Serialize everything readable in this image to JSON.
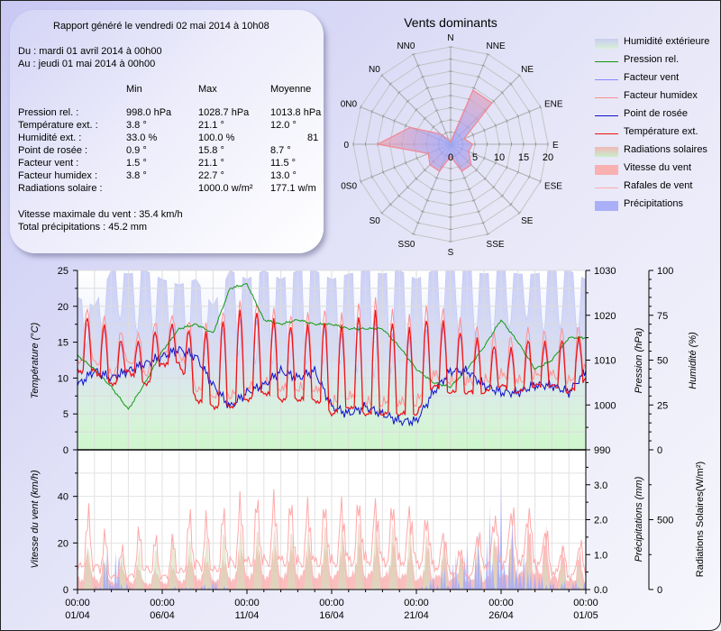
{
  "report": {
    "title": "Rapport généré le vendredi 02 mai 2014 à 10h08",
    "from": "Du : mardi 01 avril 2014 à 00h00",
    "to": "Au : jeudi 01 mai 2014 à 00h00",
    "columns": [
      "Min",
      "Max",
      "Moyenne"
    ],
    "rows": [
      {
        "label": "Pression rel. :",
        "min": "998.0 hPa",
        "max": "1028.7 hPa",
        "avg": "1013.8 hPa"
      },
      {
        "label": "Température ext. :",
        "min": "3.8 °",
        "max": "21.1 °",
        "avg": "12.0 °"
      },
      {
        "label": "Humidité ext. :",
        "min": "33.0 %",
        "max": "100.0 %",
        "avg": "81"
      },
      {
        "label": "Point de rosée :",
        "min": "0.9 °",
        "max": "15.8 °",
        "avg": "8.7 °"
      },
      {
        "label": "Facteur vent :",
        "min": "1.5 °",
        "max": "21.1 °",
        "avg": "11.5 °"
      },
      {
        "label": "Facteur humidex :",
        "min": "3.8 °",
        "max": "22.7 °",
        "avg": "13.0 °"
      },
      {
        "label": "Radiations solaire :",
        "min": "",
        "max": "1000.0 w/m²",
        "avg": "177.1 w/m"
      }
    ],
    "max_wind": "Vitesse maximale du vent : 35.4 km/h",
    "total_rain": "Total précipitations : 45.2 mm"
  },
  "legend": [
    {
      "label": "Humidité extérieure",
      "kind": "area",
      "color": "#c8ccf0",
      "color2": "#d8f0d8"
    },
    {
      "label": "Pression rel.",
      "kind": "line",
      "color": "#119911"
    },
    {
      "label": "Facteur vent",
      "kind": "line",
      "color": "#8888ff"
    },
    {
      "label": "Facteur humidex",
      "kind": "line",
      "color": "#ff9090"
    },
    {
      "label": "Point de rosée",
      "kind": "line",
      "color": "#1010cc"
    },
    {
      "label": "Température ext.",
      "kind": "line",
      "color": "#ee1111"
    },
    {
      "label": "Radiations solaires",
      "kind": "area",
      "color": "#f0b8b8",
      "color2": "#c8eec8"
    },
    {
      "label": "Vitesse du vent",
      "kind": "area",
      "color": "#f8b0b0",
      "color2": "#f8b0b0"
    },
    {
      "label": "Rafales de vent",
      "kind": "line",
      "color": "#ffaaaa"
    },
    {
      "label": "Précipitations",
      "kind": "area",
      "color": "#aab0f8",
      "color2": "#aab0f8"
    }
  ],
  "chart_data": [
    {
      "type": "radar",
      "title": "Vents dominants",
      "directions": [
        "N",
        "NNE",
        "NE",
        "ENE",
        "E",
        "ESE",
        "SE",
        "SSE",
        "S",
        "SS0",
        "S0",
        "0S0",
        "0",
        "0N0",
        "N0",
        "NN0"
      ],
      "values": [
        0.5,
        12,
        12,
        3,
        4.5,
        4,
        6,
        6,
        2.5,
        6,
        6,
        5,
        15,
        9,
        3,
        1
      ],
      "rticks": [
        0,
        5,
        10,
        15,
        20
      ],
      "rlim": [
        0,
        20
      ]
    },
    {
      "type": "line",
      "title": "",
      "x_ticks": [
        {
          "l1": "00:00",
          "l2": "01/04"
        },
        {
          "l1": "00:00",
          "l2": "06/04"
        },
        {
          "l1": "00:00",
          "l2": "11/04"
        },
        {
          "l1": "00:00",
          "l2": "16/04"
        },
        {
          "l1": "00:00",
          "l2": "21/04"
        },
        {
          "l1": "00:00",
          "l2": "26/04"
        },
        {
          "l1": "00:00",
          "l2": "01/05"
        }
      ],
      "x_range_days": [
        0,
        30
      ],
      "axes": {
        "temperature": {
          "label": "Température (°C)",
          "lim": [
            0,
            25
          ],
          "ticks": [
            0,
            5,
            10,
            15,
            20,
            25
          ]
        },
        "pressure": {
          "label": "Pression (hPa)",
          "lim": [
            990,
            1030
          ],
          "ticks": [
            990,
            1000,
            1010,
            1020,
            1030
          ]
        },
        "humidity": {
          "label": "Humidité (%)",
          "lim": [
            0,
            100
          ],
          "ticks": [
            0,
            25,
            50,
            75,
            100
          ]
        }
      },
      "day_samples": [
        0,
        1,
        2,
        3,
        4,
        5,
        6,
        7,
        8,
        9,
        10,
        11,
        12,
        13,
        14,
        15,
        16,
        17,
        18,
        19,
        20,
        21,
        22,
        23,
        24,
        25,
        26,
        27,
        28,
        29,
        30
      ],
      "series": [
        {
          "name": "Pression rel.",
          "axis": "pressure",
          "color": "#119911",
          "values": [
            1011,
            1008,
            1004,
            999,
            1005,
            1012,
            1017,
            1018,
            1016,
            1026,
            1027,
            1019,
            1018,
            1019,
            1018,
            1018,
            1017,
            1017,
            1017,
            1013,
            1008,
            1005,
            1004,
            1008,
            1013,
            1019,
            1014,
            1008,
            1010,
            1015,
            1015
          ]
        },
        {
          "name": "Température ext. (daily min/max)",
          "axis": "temperature",
          "color": "#ee1111",
          "tmin": [
            11,
            11,
            9,
            11,
            9,
            12,
            12,
            7,
            6,
            6,
            7,
            8,
            7,
            7,
            7,
            5,
            6,
            5,
            5,
            5,
            5,
            9,
            8,
            8,
            8,
            9,
            8,
            9,
            9,
            8,
            10
          ],
          "tmax": [
            19,
            18,
            17,
            14,
            16,
            17,
            18,
            16,
            17,
            19,
            20,
            19,
            18,
            17,
            18,
            18,
            17,
            20,
            19,
            17,
            17,
            19,
            17,
            16,
            15,
            14,
            14,
            16,
            14,
            16,
            15
          ]
        },
        {
          "name": "Point de rosée",
          "axis": "temperature",
          "color": "#1010cc",
          "values": [
            9,
            11,
            10,
            11,
            12,
            13,
            14,
            13,
            9,
            6,
            8,
            9,
            11,
            10,
            11,
            6,
            5,
            6,
            5,
            4,
            4,
            8,
            11,
            11,
            9,
            8,
            8,
            9,
            9,
            8,
            11
          ]
        },
        {
          "name": "Humidité extérieure (daily max/min)",
          "axis": "humidity",
          "hmax": [
            85,
            80,
            100,
            98,
            100,
            95,
            92,
            95,
            80,
            100,
            95,
            100,
            95,
            100,
            100,
            95,
            98,
            100,
            98,
            100,
            95,
            100,
            100,
            100,
            98,
            100,
            98,
            98,
            100,
            100,
            95
          ],
          "hmin": [
            60,
            55,
            75,
            70,
            60,
            65,
            55,
            50,
            55,
            60,
            45,
            50,
            45,
            50,
            45,
            50,
            45,
            40,
            40,
            45,
            50,
            55,
            70,
            60,
            65,
            60,
            75,
            70,
            60,
            75,
            55
          ]
        }
      ]
    },
    {
      "type": "area",
      "title": "",
      "axes": {
        "wind": {
          "label": "Vitesse du vent (km/h)",
          "lim": [
            0,
            60
          ],
          "ticks": [
            0,
            20,
            40
          ]
        },
        "rain": {
          "label": "Précipitations (mm)",
          "lim": [
            0,
            4.0
          ],
          "ticks": [
            0.0,
            1.0,
            2.0,
            3.0
          ]
        },
        "solar": {
          "label": "Radiations Solaires(W/m²)",
          "lim": [
            0,
            1000
          ],
          "ticks": [
            0,
            500
          ]
        }
      },
      "series": [
        {
          "name": "Vitesse du vent (daily peak)",
          "axis": "wind",
          "values": [
            22,
            22,
            14,
            18,
            12,
            14,
            17,
            25,
            18,
            22,
            30,
            28,
            28,
            30,
            27,
            28,
            30,
            30,
            29,
            28,
            22,
            26,
            22,
            18,
            20,
            28,
            30,
            36,
            25,
            18,
            20
          ]
        },
        {
          "name": "Rafales de vent (daily peak)",
          "axis": "wind",
          "values": [
            36,
            39,
            20,
            20,
            34,
            20,
            28,
            42,
            30,
            44,
            44,
            46,
            46,
            44,
            44,
            45,
            47,
            49,
            47,
            48,
            45,
            40,
            28,
            22,
            40,
            46,
            50,
            46,
            30,
            22,
            30
          ]
        },
        {
          "name": "Radiations solaires (daily peak)",
          "axis": "solar",
          "values": [
            480,
            380,
            200,
            430,
            330,
            400,
            500,
            420,
            480,
            500,
            560,
            480,
            520,
            460,
            500,
            560,
            540,
            580,
            600,
            520,
            520,
            450,
            300,
            260,
            500,
            460,
            420,
            350,
            240,
            260,
            220
          ]
        },
        {
          "name": "Précipitations (daily peak)",
          "axis": "rain",
          "values": [
            0,
            0,
            1.8,
            0.1,
            0,
            0,
            0.2,
            0.1,
            0.4,
            0,
            0,
            0,
            0,
            0,
            0,
            0,
            0,
            0,
            0,
            0,
            0,
            0.6,
            1.0,
            1.4,
            2.0,
            3.9,
            2.6,
            1.0,
            0.3,
            0.3,
            0.3
          ]
        }
      ]
    }
  ]
}
